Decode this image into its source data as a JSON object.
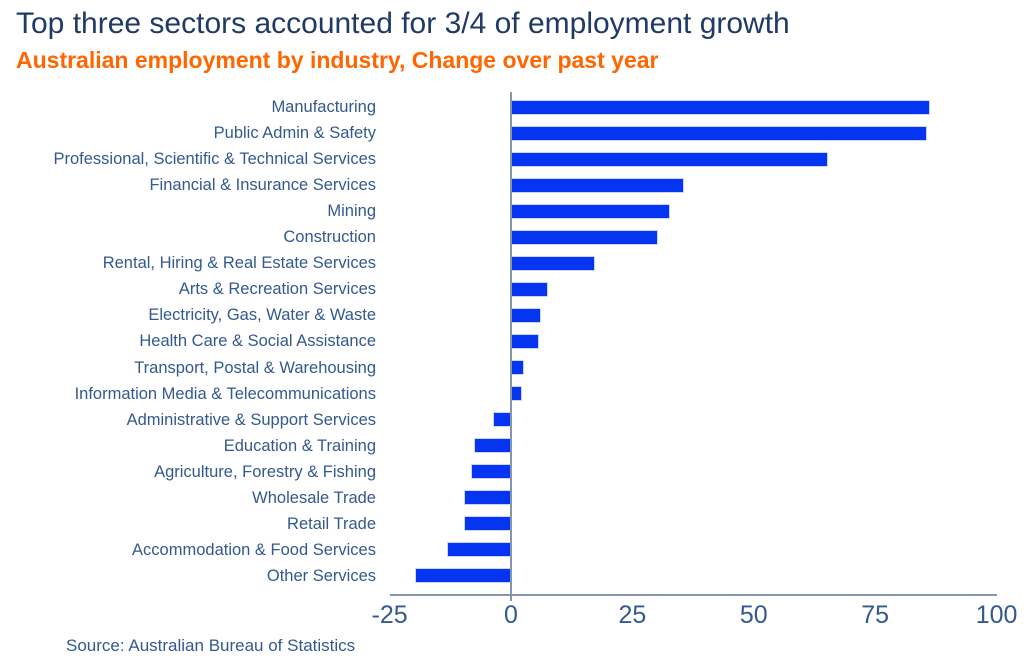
{
  "header": {
    "title": "Top three sectors accounted for 3/4 of employment growth",
    "subtitle": "Australian employment by industry, Change over past year"
  },
  "footer": {
    "source": "Source: Australian Bureau of Statistics"
  },
  "colors": {
    "title": "#1f3a64",
    "subtitle": "#ff6600",
    "bar": "#0535f0",
    "labels": "#33598f",
    "axis": "#8496ae"
  },
  "chart_data": {
    "type": "bar",
    "orientation": "horizontal",
    "title": "Top three sectors accounted for 3/4 of employment growth",
    "subtitle": "Australian employment by industry, Change over past year",
    "xlabel": "",
    "ylabel": "",
    "xlim": [
      -25,
      100
    ],
    "x_ticks": [
      -25,
      0,
      25,
      50,
      75,
      100
    ],
    "grid": false,
    "legend": false,
    "categories": [
      "Manufacturing",
      "Public Admin & Safety",
      "Professional, Scientific & Technical Services",
      "Financial & Insurance Services",
      "Mining",
      "Construction",
      "Rental, Hiring & Real Estate Services",
      "Arts & Recreation Services",
      "Electricity, Gas, Water & Waste",
      "Health Care & Social Assistance",
      "Transport, Postal & Warehousing",
      "Information Media & Telecommunications",
      "Administrative & Support Services",
      "Education & Training",
      "Agriculture, Forestry & Fishing",
      "Wholesale Trade",
      "Retail Trade",
      "Accommodation & Food Services",
      "Other Services"
    ],
    "values": [
      86,
      85.5,
      65,
      35.5,
      32.5,
      30,
      17,
      7.5,
      6,
      5.5,
      2.5,
      2,
      -3.5,
      -7.5,
      -8,
      -9.5,
      -9.5,
      -13,
      -19.5
    ]
  }
}
